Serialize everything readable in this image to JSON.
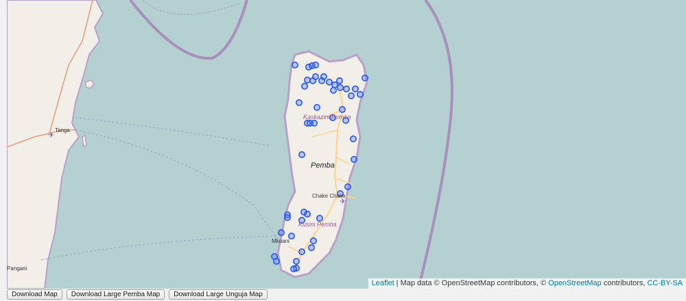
{
  "map": {
    "labels": {
      "tanga": "Tanga",
      "pemba": "Pemba",
      "kaskazini": "Kaskazini Pemba",
      "kusini": "Kusini Pemba",
      "chake": "Chake Chake",
      "mkoani": "Mkoani",
      "pangani": "Pangani"
    },
    "attribution": {
      "leaflet": "Leaflet",
      "sep": " | Map data © OpenStreetMap contributors, © ",
      "osm": "OpenStreetMap",
      "mid": " contributors, ",
      "license": "CC-BY-SA"
    },
    "colors": {
      "water": "#b5d0d0",
      "land": "#f2efe9",
      "coast": "#b8a0c8",
      "boundary": "#a684b9",
      "road": "#fdd38a",
      "marker_stroke": "#2255ff",
      "marker_fill": "#5577ff"
    }
  },
  "toolbar": {
    "download_map": "Download Map",
    "download_large_pemba": "Download Large Pemba Map",
    "download_large_unguja": "Download Large Unguja Map"
  }
}
